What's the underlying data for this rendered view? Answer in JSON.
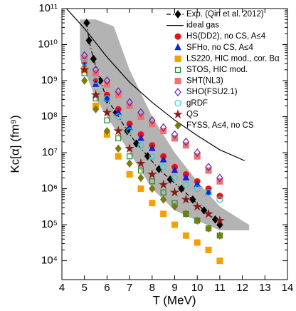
{
  "chart_data": {
    "type": "scatter",
    "x_label": "T (MeV)",
    "y_label": "Kc[α] (fm⁹)",
    "xlim": [
      4,
      14
    ],
    "xticks": [
      4,
      5,
      6,
      7,
      8,
      9,
      10,
      11,
      12,
      13,
      14
    ],
    "ylim": [
      3000,
      100000000000.0
    ],
    "y_log": true,
    "yticks": [
      {
        "value": 10000.0,
        "label": "10⁴"
      },
      {
        "value": 100000.0,
        "label": "10⁵"
      },
      {
        "value": 1000000.0,
        "label": "10⁶"
      },
      {
        "value": 10000000.0,
        "label": "10⁷"
      },
      {
        "value": 100000000.0,
        "label": "10⁸"
      },
      {
        "value": 1000000000.0,
        "label": "10⁹"
      },
      {
        "value": 10000000000.0,
        "label": "10¹⁰"
      },
      {
        "value": 100000000000.0,
        "label": "10¹¹"
      }
    ],
    "legend": "upper right",
    "band": {
      "color": "#b3b3b3",
      "x": [
        4.8,
        5.5,
        6.3,
        7,
        8,
        9,
        10,
        11,
        12,
        12.3
      ],
      "upper": [
        50000000000.0,
        50000000000.0,
        32000000000.0,
        2000000000.0,
        100000000.0,
        10000000.0,
        1600000.0,
        320000.0,
        130000.0,
        100000.0
      ],
      "lower": [
        4000000000.0,
        320000000.0,
        50000000.0,
        10000000.0,
        1000000.0,
        250000.0,
        130000.0,
        70000.0,
        70000.0,
        70000.0
      ]
    },
    "series": [
      {
        "name": "Exp. (Qin et al. 2012)",
        "color": "#000000",
        "marker": "diamond",
        "line": "dashdot",
        "x": [
          5.1,
          5.2,
          5.4,
          5.7,
          6.0,
          6.4,
          6.9,
          7.3,
          7.8,
          8.3,
          8.8,
          9.3,
          9.8,
          10.3,
          10.8,
          11.0
        ],
        "values": [
          40000000000.0,
          13000000000.0,
          4000000000.0,
          1000000000.0,
          300000000.0,
          130000000.0,
          40000000.0,
          18000000.0,
          8000000.0,
          3500000.0,
          1800000.0,
          1000000.0,
          500000.0,
          250000.0,
          140000.0,
          100000.0
        ]
      },
      {
        "name": "ideal gas",
        "color": "#000000",
        "marker": null,
        "line": "solid",
        "x": [
          4.2,
          5,
          6,
          7,
          8,
          9,
          10,
          11,
          12.1
        ],
        "values": [
          100000000000.0,
          28000000000.0,
          4500000000.0,
          900000000.0,
          250000000.0,
          80000000.0,
          30000000.0,
          12000000.0,
          6000000.0
        ]
      },
      {
        "name": "HS(DD2), no CS, A≤4",
        "color": "#ee1111",
        "marker": "circle",
        "x": [
          5,
          5.5,
          6,
          6.5,
          7,
          7.5,
          8,
          8.5,
          9,
          9.5,
          10,
          10.5,
          11
        ],
        "values": [
          3200000000.0,
          1000000000.0,
          400000000.0,
          160000000.0,
          63000000.0,
          32000000.0,
          16000000.0,
          7900000.0,
          4000000.0,
          2500000.0,
          1600000.0,
          1000000.0,
          630000.0
        ]
      },
      {
        "name": "SFHo, no CS, A≤4",
        "color": "#1122dd",
        "marker": "triangle",
        "x": [
          5,
          5.5,
          6,
          6.5,
          7,
          7.5,
          8,
          8.5,
          9,
          9.5,
          10,
          10.5
        ],
        "values": [
          2500000000.0,
          790000000.0,
          320000000.0,
          130000000.0,
          50000000.0,
          25000000.0,
          13000000.0,
          6300000.0,
          3200000.0,
          2000000.0,
          1300000.0,
          790000.0
        ]
      },
      {
        "name": "LS220, HIC mod., cor. Bα",
        "color": "#f5a000",
        "marker": "square",
        "x": [
          5,
          5.5,
          6,
          6.5,
          7,
          7.5,
          8,
          8.5,
          9,
          9.5,
          10,
          10.5,
          11
        ],
        "values": [
          2000000000.0,
          200000000.0,
          32000000.0,
          7900000.0,
          2500000.0,
          1000000.0,
          400000.0,
          200000.0,
          100000.0,
          50000.0,
          32000.0,
          20000.0,
          10000.0
        ]
      },
      {
        "name": "STOS, HIC mod.",
        "color": "#1a8a1a",
        "marker": "open-square",
        "x": [
          5,
          5.5,
          6,
          6.5,
          7,
          7.5,
          8,
          8.5,
          9,
          9.5,
          10,
          10.5,
          11
        ],
        "values": [
          1600000000.0,
          320000000.0,
          79000000.0,
          25000000.0,
          7900000.0,
          3200000.0,
          1600000.0,
          790000.0,
          400000.0,
          200000.0,
          130000.0,
          79000.0,
          50000.0
        ]
      },
      {
        "name": "SHT(NL3)",
        "color": "#f07070",
        "marker": "square",
        "x": [
          5,
          5.5,
          6,
          6.5,
          7,
          7.5,
          8,
          8.5,
          9,
          9.5,
          10,
          10.5,
          11
        ],
        "values": [
          4000000000.0,
          1600000000.0,
          790000000.0,
          400000000.0,
          200000000.0,
          100000000.0,
          63000000.0,
          40000000.0,
          25000000.0,
          16000000.0,
          7900000.0,
          3200000.0,
          1600000.0
        ]
      },
      {
        "name": "SHO(FSU2.1)",
        "color": "#6a1fb0",
        "marker": "open-diamond",
        "x": [
          5,
          5.5,
          6,
          6.5,
          7,
          7.5,
          8,
          8.5,
          9,
          9.5,
          10,
          10.5,
          11
        ],
        "values": [
          5000000000.0,
          2000000000.0,
          1000000000.0,
          500000000.0,
          250000000.0,
          130000000.0,
          79000000.0,
          50000000.0,
          32000000.0,
          20000000.0,
          10000000.0,
          4000000.0,
          2000000.0
        ]
      },
      {
        "name": "gRDF",
        "color": "#22d0e0",
        "marker": "open-circle",
        "x": [
          5,
          5.5,
          6,
          6.5,
          7,
          7.5,
          8,
          8.5,
          9,
          9.5,
          10,
          10.5,
          11
        ],
        "values": [
          3200000000.0,
          1000000000.0,
          320000000.0,
          100000000.0,
          40000000.0,
          16000000.0,
          7900000.0,
          4000000.0,
          2000000.0,
          1300000.0,
          1000000.0,
          790000.0,
          500000.0
        ]
      },
      {
        "name": "QS",
        "color": "#8b1a1a",
        "marker": "star",
        "x": [
          5,
          5.5,
          6,
          6.5,
          7,
          7.5,
          8,
          8.5,
          9,
          9.5,
          10,
          10.5,
          11
        ],
        "values": [
          2000000000.0,
          400000000.0,
          130000000.0,
          40000000.0,
          13000000.0,
          5000000.0,
          2500000.0,
          1300000.0,
          790000.0,
          500000.0,
          320000.0,
          200000.0,
          130000.0
        ]
      },
      {
        "name": "FYSS, A≤4, no CS",
        "color": "#7a7a10",
        "marker": "diamond",
        "x": [
          5,
          5.5,
          6,
          6.5,
          7,
          7.5,
          8,
          8.5,
          9,
          9.5,
          10,
          10.5,
          11
        ],
        "values": [
          1000000000.0,
          160000000.0,
          40000000.0,
          13000000.0,
          5000000.0,
          2000000.0,
          1000000.0,
          500000.0,
          320000.0,
          200000.0,
          130000.0,
          79000.0,
          50000.0
        ]
      }
    ]
  }
}
